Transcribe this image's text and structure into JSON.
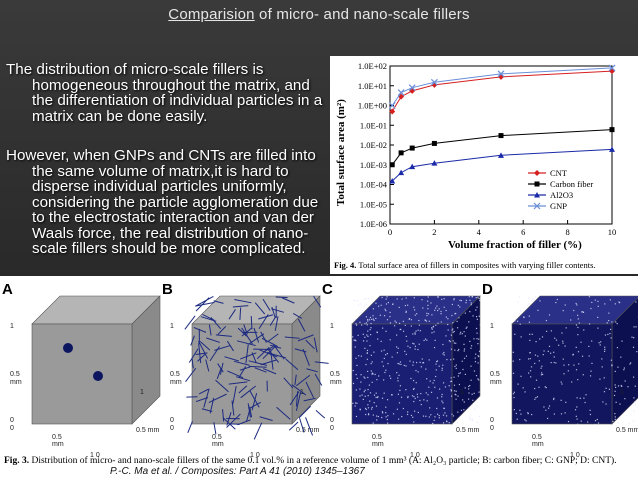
{
  "slide": {
    "title_prefix": "Comparision",
    "title_rest": " of micro- and nano-scale fillers",
    "bullets": [
      "The distribution of micro-scale fillers is homogeneous throughout the matrix, and the differentiation of individual particles in a matrix  can be done easily.",
      "However, when GNPs and CNTs are filled into the same volume of matrix,it is hard to disperse individual particles uniformly, considering the particle agglomeration due to the electrostatic interaction and van der Waals force, the real distribution of nano-scale fillers should be more complicated."
    ],
    "citation": "P.-C. Ma et al. / Composites: Part A 41 (2010) 1345–1367"
  },
  "fig4": {
    "caption_label": "Fig. 4.",
    "caption_text": " Total surface area of fillers in composites with varying filler contents.",
    "ylabel": "Total surface area (m²)",
    "xlabel": "Volume fraction of filler (%)",
    "y_ticks": [
      "1.0E+02",
      "1.0E+01",
      "1.0E+00",
      "1.0E-01",
      "1.0E-02",
      "1.0E-03",
      "1.0E-04",
      "1.0E-05",
      "1.0E-06"
    ],
    "x_ticks": [
      "0",
      "2",
      "4",
      "6",
      "8",
      "10"
    ]
  },
  "chart_data": {
    "type": "line",
    "xlabel": "Volume fraction of filler (%)",
    "ylabel": "Total surface area (m²)",
    "xlim": [
      0,
      10
    ],
    "ylim_log10": [
      -6,
      2
    ],
    "y_scale": "log",
    "legend_position": "lower-right",
    "series": [
      {
        "name": "CNT",
        "color": "#d62020",
        "marker": "diamond",
        "x": [
          0.1,
          0.5,
          1,
          2,
          5,
          10
        ],
        "y": [
          0.5,
          2.8,
          5.5,
          11,
          28,
          55
        ]
      },
      {
        "name": "Carbon fiber",
        "color": "#000000",
        "marker": "square",
        "x": [
          0.1,
          0.5,
          1,
          2,
          5,
          10
        ],
        "y": [
          0.001,
          0.004,
          0.007,
          0.012,
          0.03,
          0.06
        ]
      },
      {
        "name": "Al2O3",
        "color": "#1a2aa8",
        "marker": "triangle",
        "x": [
          0.1,
          0.5,
          1,
          2,
          5,
          10
        ],
        "y": [
          0.00015,
          0.0004,
          0.0008,
          0.0012,
          0.003,
          0.006
        ]
      },
      {
        "name": "GNP",
        "color": "#6a8fd8",
        "marker": "x",
        "x": [
          0.1,
          0.5,
          1,
          2,
          5,
          10
        ],
        "y": [
          1,
          4.5,
          8,
          15,
          40,
          80
        ]
      }
    ]
  },
  "fig3": {
    "caption_label": "Fig. 3.",
    "caption_text": " Distribution of micro- and nano-scale fillers of the same 0.1 vol.% in a reference volume of 1 mm³ (A: Al₂O₃ particle; B: carbon fiber; C: GNP; D: CNT).",
    "panels": [
      "A",
      "B",
      "C",
      "D"
    ],
    "axis_labels": {
      "one": "1",
      "half": "0.5",
      "zero": "0",
      "mm": "mm",
      "half_mm": "0.5 mm",
      "ten": "1 0"
    }
  }
}
